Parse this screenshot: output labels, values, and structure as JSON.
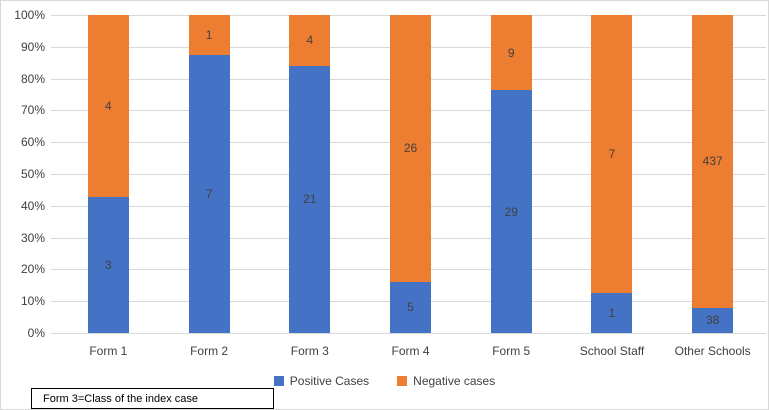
{
  "chart_data": {
    "type": "bar",
    "subtype": "stacked-100-percent",
    "categories": [
      "Form 1",
      "Form 2",
      "Form 3",
      "Form 4",
      "Form 5",
      "School Staff",
      "Other Schools"
    ],
    "series": [
      {
        "name": "Positive Cases",
        "color": "#4472C4",
        "values": [
          3,
          7,
          21,
          5,
          29,
          1,
          38
        ]
      },
      {
        "name": "Negative cases",
        "color": "#ED7D31",
        "values": [
          4,
          1,
          4,
          26,
          9,
          7,
          437
        ]
      }
    ],
    "y_axis": {
      "tick_labels": [
        "0%",
        "10%",
        "20%",
        "30%",
        "40%",
        "50%",
        "60%",
        "70%",
        "80%",
        "90%",
        "100%"
      ],
      "min": 0,
      "max": 100,
      "grid": true
    },
    "xlabel": "",
    "ylabel": "",
    "legend": {
      "position": "bottom",
      "entries": [
        "Positive Cases",
        "Negative cases"
      ]
    },
    "annotation": "Form 3=Class of the index case"
  },
  "colors": {
    "positive": "#4472C4",
    "negative": "#ED7D31",
    "grid": "#d9d9d9",
    "text": "#404040"
  }
}
